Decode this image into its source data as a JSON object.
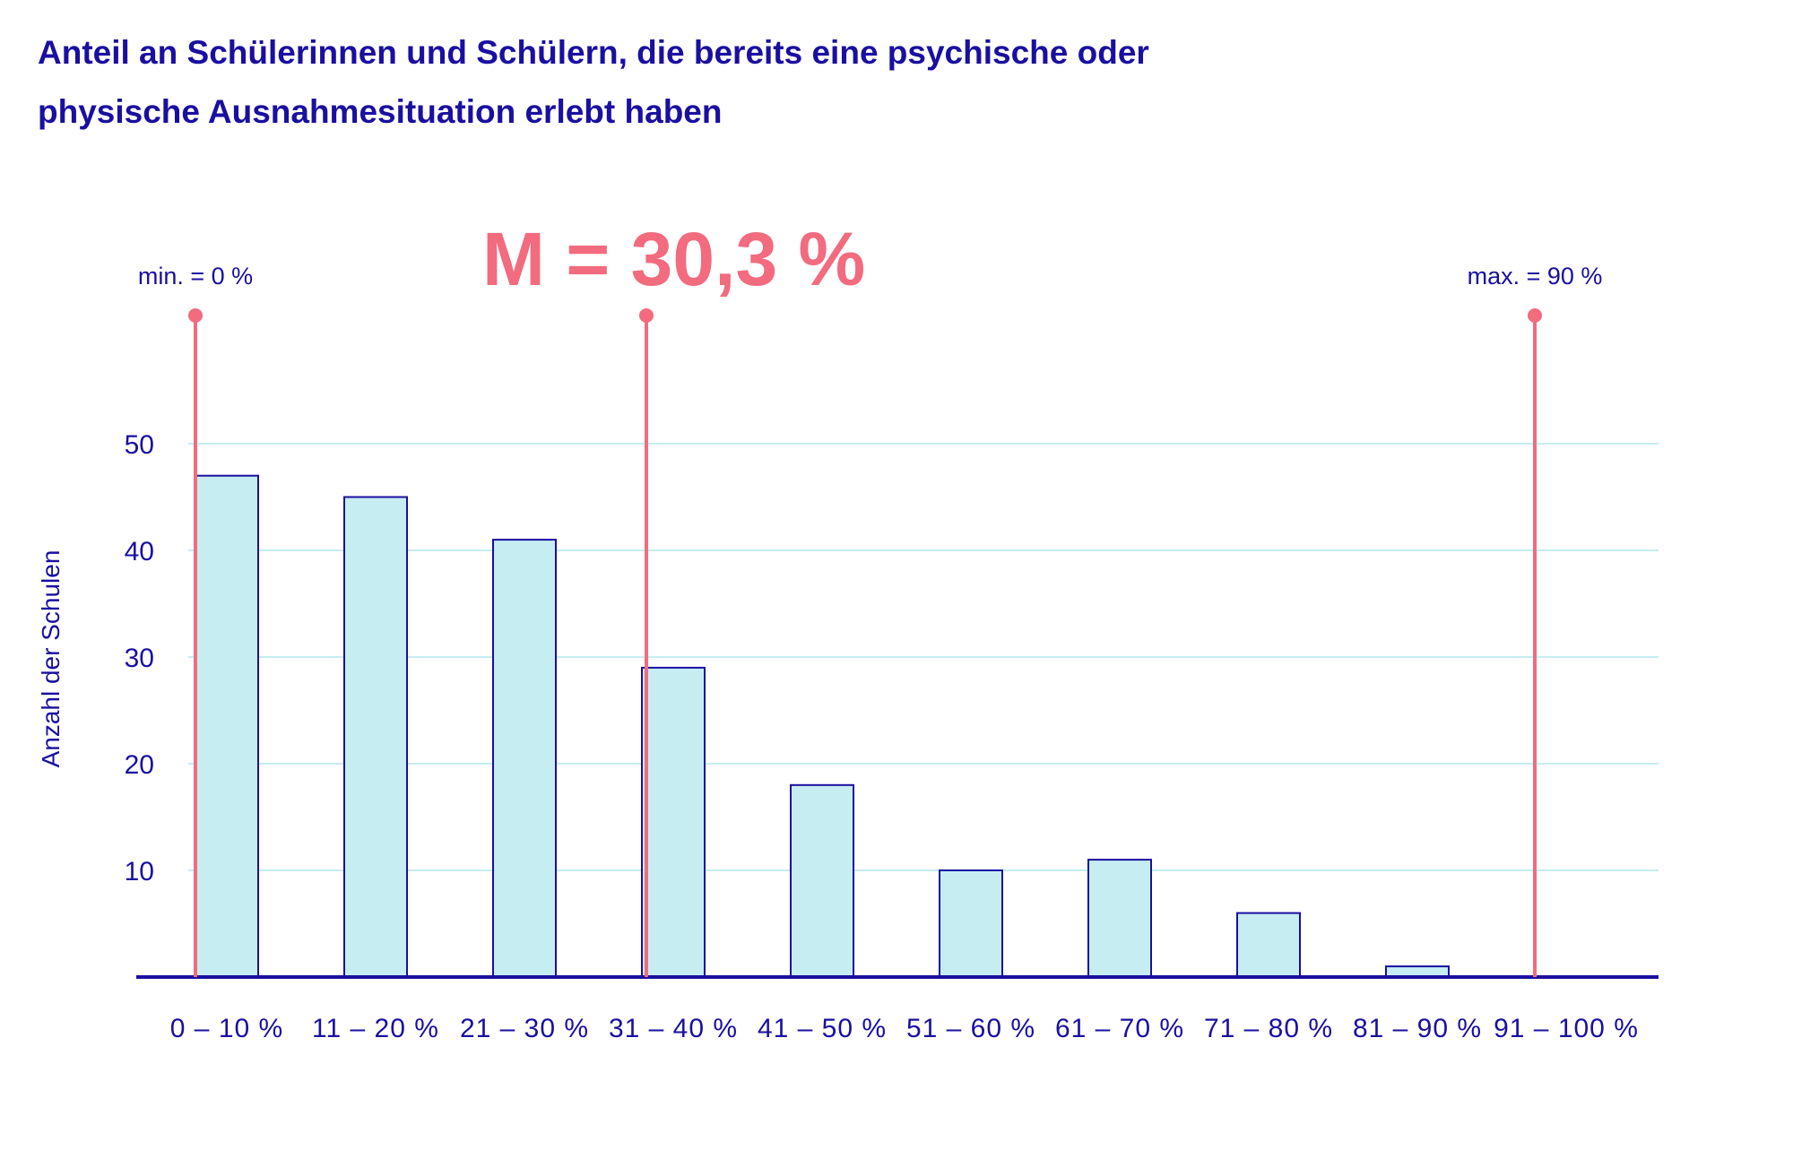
{
  "chart_data": {
    "type": "bar",
    "title": "Anteil an Schülerinnen und Schülern, die bereits eine psychische oder physische Ausnahmesituation erlebt haben",
    "title_lines": [
      "Anteil an Schülerinnen und Schülern, die bereits eine psychische oder",
      "physische Ausnahmesituation erlebt haben"
    ],
    "ylabel": "Anzahl der Schulen",
    "xlabel": "",
    "categories": [
      "0 – 10 %",
      "11 – 20 %",
      "21 – 30 %",
      "31 – 40 %",
      "41 – 50 %",
      "51 – 60 %",
      "61 – 70 %",
      "71 – 80 %",
      "81 – 90 %",
      "91 – 100 %"
    ],
    "values": [
      47,
      45,
      41,
      29,
      18,
      10,
      11,
      6,
      1,
      0
    ],
    "yticks": [
      10,
      20,
      30,
      40,
      50
    ],
    "ylim": [
      0,
      60
    ],
    "grid": true,
    "annotations": {
      "min_label": "min. = 0 %",
      "min_value": 0,
      "mean_label": "M = 30,3 %",
      "mean_value": 30.3,
      "max_label": "max. = 90 %",
      "max_value": 90
    },
    "colors": {
      "bar_fill": "#c6edf2",
      "bar_stroke": "#1a0fa0",
      "text": "#1a0fa0",
      "marker": "#f26b7e",
      "grid": "#c6edf2"
    }
  }
}
